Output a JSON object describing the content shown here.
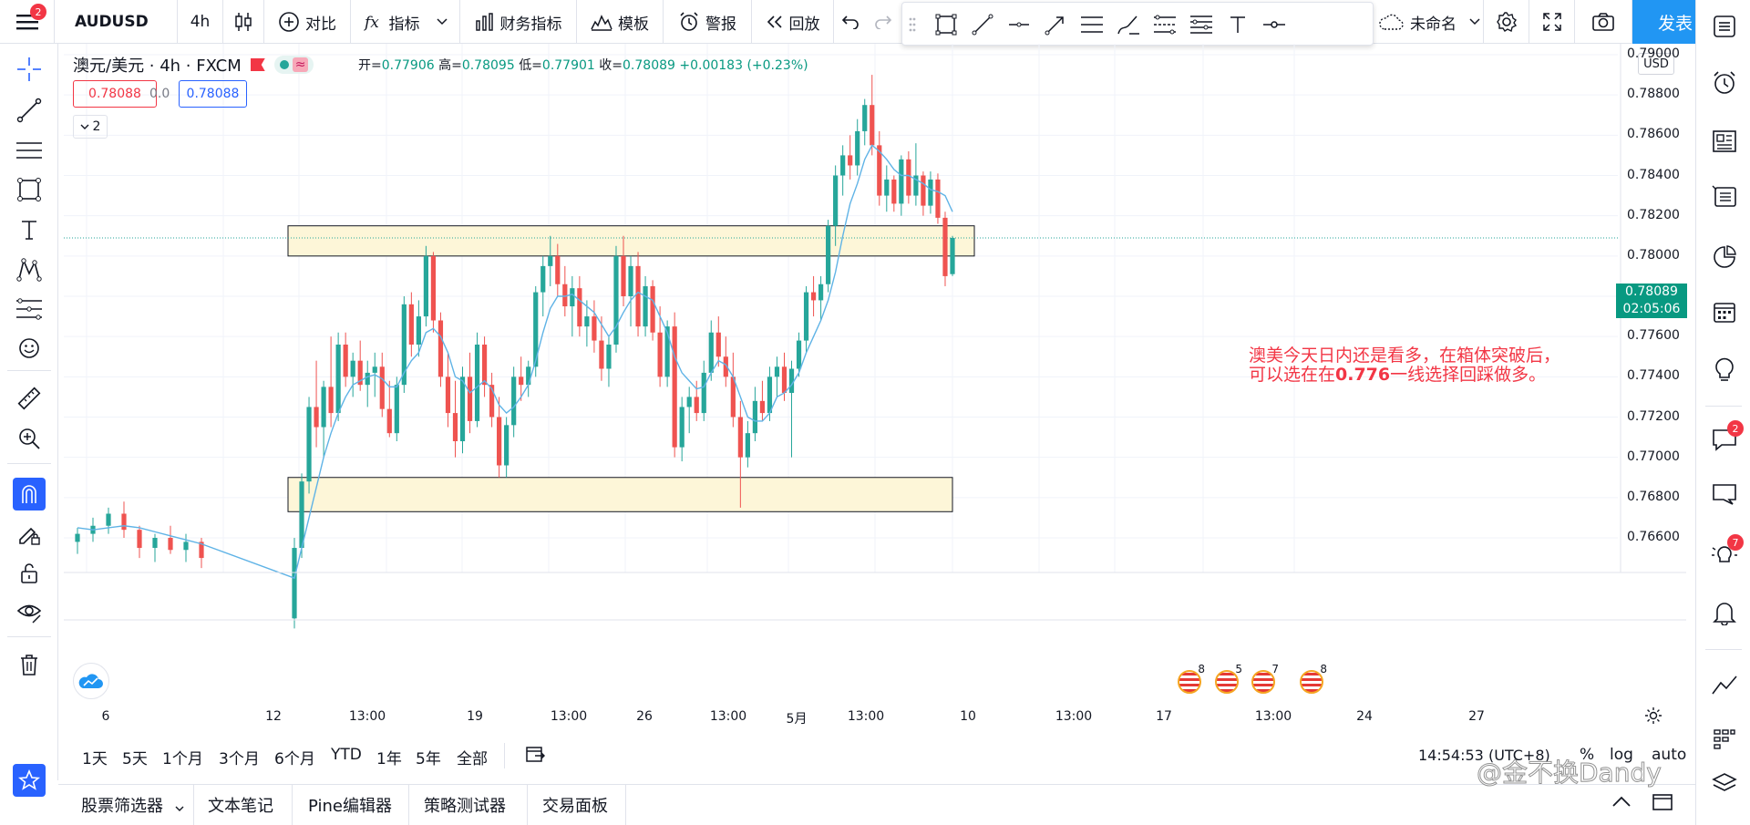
{
  "toolbar": {
    "menu_badge": "2",
    "symbol": "AUDUSD",
    "interval": "4h",
    "compare_label": "对比",
    "indicators_label": "指标",
    "financials_label": "财务指标",
    "templates_label": "模板",
    "alert_label": "警报",
    "replay_label": "回放",
    "layout_name": "未命名",
    "publish_label": "发表"
  },
  "legend": {
    "title": "澳元/美元 · 4h · FXCM",
    "open_label": "开=",
    "open": "0.77906",
    "high_label": "高=",
    "high": "0.78095",
    "low_label": "低=",
    "low": "0.77901",
    "close_label": "收=",
    "close": "0.78089",
    "change": "+0.00183 (+0.23%)",
    "sell_price": "0.78088",
    "spread": "0.0",
    "buy_price": "0.78088",
    "collapse_count": "2"
  },
  "price_axis": {
    "currency": "USD",
    "labels": [
      "0.79000",
      "0.78800",
      "0.78600",
      "0.78400",
      "0.78200",
      "0.78000",
      "0.77800",
      "0.77600",
      "0.77400",
      "0.77200",
      "0.77000",
      "0.76800",
      "0.76600"
    ],
    "current_price": "0.78089",
    "countdown": "02:05:06"
  },
  "time_axis": {
    "labels": [
      "6",
      "12",
      "13:00",
      "19",
      "13:00",
      "26",
      "13:00",
      "5月",
      "13:00",
      "10",
      "13:00",
      "17",
      "13:00",
      "24",
      "27"
    ]
  },
  "annotation": {
    "line1": "澳美今天日内还是看多，在箱体突破后，",
    "line2_pre": "可以选在在",
    "line2_bold": "0.776",
    "line2_post": "一线选择回踩做多。"
  },
  "events": [
    "8",
    "5",
    "7",
    "8"
  ],
  "range_bar": {
    "ranges": [
      "1天",
      "5天",
      "1个月",
      "3个月",
      "6个月",
      "YTD",
      "1年",
      "5年",
      "全部"
    ],
    "clock": "14:54:53 (UTC+8)",
    "percent": "%",
    "log": "log",
    "auto": "auto"
  },
  "panel_tabs": [
    "股票筛选器",
    "文本笔记",
    "Pine编辑器",
    "策略测试器",
    "交易面板"
  ],
  "right_badges": {
    "chat": "2",
    "ideas": "7"
  },
  "watermark": "@金不换Dandy",
  "colors": {
    "up": "#26a69a",
    "down": "#ef5350",
    "ma": "#5fb3e6",
    "box_fill": "#fdf6d8",
    "accent": "#2196f3",
    "annotation": "#f23645"
  },
  "chart_data": {
    "type": "candlestick",
    "symbol": "AUDUSD",
    "interval": "4h",
    "ylim": [
      0.7655,
      0.7905
    ],
    "zones": [
      {
        "from": 0.7815,
        "to": 0.78
      },
      {
        "from": 0.769,
        "to": 0.7673
      }
    ],
    "candles": [
      [
        0.7658,
        0.7665,
        0.7652,
        0.7662
      ],
      [
        0.7662,
        0.767,
        0.7658,
        0.7666
      ],
      [
        0.7666,
        0.7675,
        0.7662,
        0.7672
      ],
      [
        0.7672,
        0.7678,
        0.766,
        0.7664
      ],
      [
        0.7664,
        0.7666,
        0.765,
        0.7655
      ],
      [
        0.7655,
        0.7662,
        0.7648,
        0.766
      ],
      [
        0.766,
        0.7666,
        0.7652,
        0.7654
      ],
      [
        0.7654,
        0.7662,
        0.7648,
        0.7658
      ],
      [
        0.7658,
        0.766,
        0.7645,
        0.765
      ],
      [
        0.762,
        0.766,
        0.7615,
        0.7655
      ],
      [
        0.7655,
        0.7692,
        0.765,
        0.7688
      ],
      [
        0.7688,
        0.773,
        0.7682,
        0.7725
      ],
      [
        0.7725,
        0.7748,
        0.7705,
        0.7715
      ],
      [
        0.7715,
        0.7738,
        0.77,
        0.7735
      ],
      [
        0.7735,
        0.776,
        0.7715,
        0.7722
      ],
      [
        0.7722,
        0.7762,
        0.7718,
        0.7756
      ],
      [
        0.7756,
        0.7762,
        0.7735,
        0.774
      ],
      [
        0.774,
        0.7752,
        0.773,
        0.7748
      ],
      [
        0.7748,
        0.7758,
        0.7733,
        0.7736
      ],
      [
        0.7736,
        0.7748,
        0.7725,
        0.7742
      ],
      [
        0.7742,
        0.7752,
        0.773,
        0.7745
      ],
      [
        0.7745,
        0.7752,
        0.772,
        0.7724
      ],
      [
        0.7724,
        0.7738,
        0.771,
        0.7712
      ],
      [
        0.7712,
        0.774,
        0.7708,
        0.7736
      ],
      [
        0.7736,
        0.778,
        0.7732,
        0.7776
      ],
      [
        0.7776,
        0.7782,
        0.775,
        0.7756
      ],
      [
        0.7756,
        0.7778,
        0.775,
        0.777
      ],
      [
        0.777,
        0.7805,
        0.7765,
        0.78
      ],
      [
        0.78,
        0.7802,
        0.7762,
        0.7768
      ],
      [
        0.7768,
        0.7772,
        0.7735,
        0.774
      ],
      [
        0.774,
        0.7752,
        0.7715,
        0.7722
      ],
      [
        0.7722,
        0.7738,
        0.77,
        0.7708
      ],
      [
        0.7708,
        0.7745,
        0.7702,
        0.774
      ],
      [
        0.774,
        0.7752,
        0.7712,
        0.7718
      ],
      [
        0.7718,
        0.7762,
        0.7715,
        0.7756
      ],
      [
        0.7756,
        0.776,
        0.773,
        0.7736
      ],
      [
        0.7736,
        0.7742,
        0.7715,
        0.772
      ],
      [
        0.772,
        0.773,
        0.769,
        0.7696
      ],
      [
        0.7696,
        0.772,
        0.769,
        0.7716
      ],
      [
        0.7716,
        0.7745,
        0.771,
        0.774
      ],
      [
        0.774,
        0.775,
        0.7728,
        0.7736
      ],
      [
        0.7736,
        0.7748,
        0.773,
        0.7745
      ],
      [
        0.7745,
        0.7785,
        0.774,
        0.7782
      ],
      [
        0.7782,
        0.78,
        0.777,
        0.7795
      ],
      [
        0.7795,
        0.781,
        0.7785,
        0.78
      ],
      [
        0.78,
        0.7806,
        0.778,
        0.7786
      ],
      [
        0.7786,
        0.7795,
        0.777,
        0.7775
      ],
      [
        0.7775,
        0.779,
        0.776,
        0.7784
      ],
      [
        0.7784,
        0.779,
        0.776,
        0.7765
      ],
      [
        0.7765,
        0.7778,
        0.7755,
        0.777
      ],
      [
        0.777,
        0.7778,
        0.7752,
        0.7758
      ],
      [
        0.7758,
        0.777,
        0.7738,
        0.7744
      ],
      [
        0.7744,
        0.776,
        0.7735,
        0.7756
      ],
      [
        0.7756,
        0.7805,
        0.7752,
        0.78
      ],
      [
        0.78,
        0.781,
        0.7775,
        0.778
      ],
      [
        0.778,
        0.78,
        0.7765,
        0.7795
      ],
      [
        0.7795,
        0.7802,
        0.776,
        0.7765
      ],
      [
        0.7765,
        0.779,
        0.776,
        0.7785
      ],
      [
        0.7785,
        0.7788,
        0.7758,
        0.7762
      ],
      [
        0.7762,
        0.7775,
        0.7735,
        0.774
      ],
      [
        0.774,
        0.7768,
        0.7735,
        0.7765
      ],
      [
        0.7765,
        0.7772,
        0.77,
        0.7705
      ],
      [
        0.7705,
        0.773,
        0.7698,
        0.7725
      ],
      [
        0.7725,
        0.7735,
        0.7712,
        0.773
      ],
      [
        0.773,
        0.7738,
        0.7718,
        0.7722
      ],
      [
        0.7722,
        0.7748,
        0.7718,
        0.7742
      ],
      [
        0.7742,
        0.7768,
        0.7738,
        0.7762
      ],
      [
        0.7762,
        0.777,
        0.7745,
        0.775
      ],
      [
        0.775,
        0.776,
        0.7735,
        0.774
      ],
      [
        0.774,
        0.7752,
        0.7715,
        0.772
      ],
      [
        0.772,
        0.7728,
        0.7675,
        0.77
      ],
      [
        0.77,
        0.7718,
        0.7695,
        0.7712
      ],
      [
        0.7712,
        0.7735,
        0.7708,
        0.7728
      ],
      [
        0.7728,
        0.7738,
        0.7718,
        0.7722
      ],
      [
        0.7722,
        0.7745,
        0.7718,
        0.774
      ],
      [
        0.774,
        0.775,
        0.773,
        0.7745
      ],
      [
        0.7745,
        0.7752,
        0.7728,
        0.7732
      ],
      [
        0.7732,
        0.7748,
        0.77,
        0.7744
      ],
      [
        0.7744,
        0.7762,
        0.774,
        0.7758
      ],
      [
        0.7758,
        0.7785,
        0.7752,
        0.7782
      ],
      [
        0.7782,
        0.779,
        0.777,
        0.7778
      ],
      [
        0.7778,
        0.779,
        0.7768,
        0.7786
      ],
      [
        0.7786,
        0.7818,
        0.7782,
        0.7815
      ],
      [
        0.7815,
        0.7845,
        0.7805,
        0.784
      ],
      [
        0.784,
        0.7855,
        0.783,
        0.785
      ],
      [
        0.785,
        0.786,
        0.7838,
        0.7845
      ],
      [
        0.7845,
        0.7868,
        0.784,
        0.7862
      ],
      [
        0.7862,
        0.7878,
        0.7855,
        0.7875
      ],
      [
        0.7875,
        0.789,
        0.785,
        0.7855
      ],
      [
        0.7855,
        0.7862,
        0.7825,
        0.783
      ],
      [
        0.783,
        0.7845,
        0.7822,
        0.7838
      ],
      [
        0.7838,
        0.784,
        0.7822,
        0.7826
      ],
      [
        0.7826,
        0.785,
        0.782,
        0.7848
      ],
      [
        0.7848,
        0.7852,
        0.7826,
        0.783
      ],
      [
        0.783,
        0.7856,
        0.7825,
        0.784
      ],
      [
        0.784,
        0.7842,
        0.782,
        0.7825
      ],
      [
        0.7825,
        0.7842,
        0.7821,
        0.7838
      ],
      [
        0.7838,
        0.7841,
        0.7816,
        0.7819
      ],
      [
        0.7819,
        0.7822,
        0.7785,
        0.779
      ],
      [
        0.7791,
        0.781,
        0.779,
        0.7809
      ]
    ],
    "ma": [
      0.7665,
      0.7664,
      0.7665,
      0.7666,
      0.7665,
      0.7663,
      0.7661,
      0.7659,
      0.7657,
      0.764,
      0.7655,
      0.767,
      0.7685,
      0.77,
      0.7712,
      0.7722,
      0.773,
      0.7736,
      0.7738,
      0.774,
      0.7741,
      0.7739,
      0.7735,
      0.7735,
      0.7742,
      0.7748,
      0.7752,
      0.7762,
      0.7764,
      0.776,
      0.7752,
      0.774,
      0.7738,
      0.7732,
      0.7735,
      0.7738,
      0.7734,
      0.7726,
      0.7722,
      0.7725,
      0.773,
      0.7736,
      0.7748,
      0.7762,
      0.7774,
      0.778,
      0.778,
      0.7781,
      0.7778,
      0.7775,
      0.7772,
      0.7766,
      0.776,
      0.7765,
      0.7772,
      0.7778,
      0.7782,
      0.778,
      0.7778,
      0.777,
      0.7762,
      0.775,
      0.7742,
      0.7738,
      0.7734,
      0.7735,
      0.7742,
      0.7748,
      0.7746,
      0.774,
      0.773,
      0.772,
      0.7718,
      0.7718,
      0.7722,
      0.773,
      0.7732,
      0.7736,
      0.7742,
      0.7752,
      0.776,
      0.7768,
      0.7778,
      0.7792,
      0.781,
      0.7826,
      0.7836,
      0.7848,
      0.7855,
      0.7852,
      0.7848,
      0.7843,
      0.784,
      0.784,
      0.7838,
      0.7836,
      0.7833,
      0.7832,
      0.783,
      0.7822
    ]
  }
}
